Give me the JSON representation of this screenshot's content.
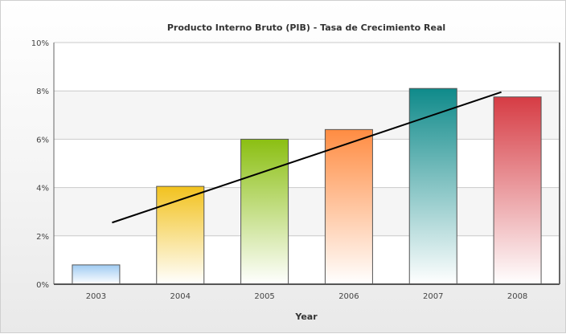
{
  "chart_data": {
    "type": "bar",
    "title": "Producto Interno Bruto (PIB) - Tasa de Crecimiento Real",
    "xlabel": "Year",
    "ylabel": "",
    "categories": [
      "2003",
      "2004",
      "2005",
      "2006",
      "2007",
      "2008"
    ],
    "values": [
      0.8,
      4.05,
      6.0,
      6.4,
      8.1,
      7.75
    ],
    "ylim": [
      0,
      10
    ],
    "yticks": [
      0,
      2,
      4,
      6,
      8,
      10
    ],
    "ytick_labels": [
      "0%",
      "2%",
      "4%",
      "6%",
      "8%",
      "10%"
    ],
    "grid": true,
    "legend": "none",
    "trendline": {
      "type": "linear",
      "start": 2.55,
      "end": 7.95,
      "color": "#000000"
    },
    "bar_colors": [
      "#9fcbf2",
      "#f2c21e",
      "#8bbf12",
      "#ff8c42",
      "#0f8a8a",
      "#d63c44"
    ]
  }
}
